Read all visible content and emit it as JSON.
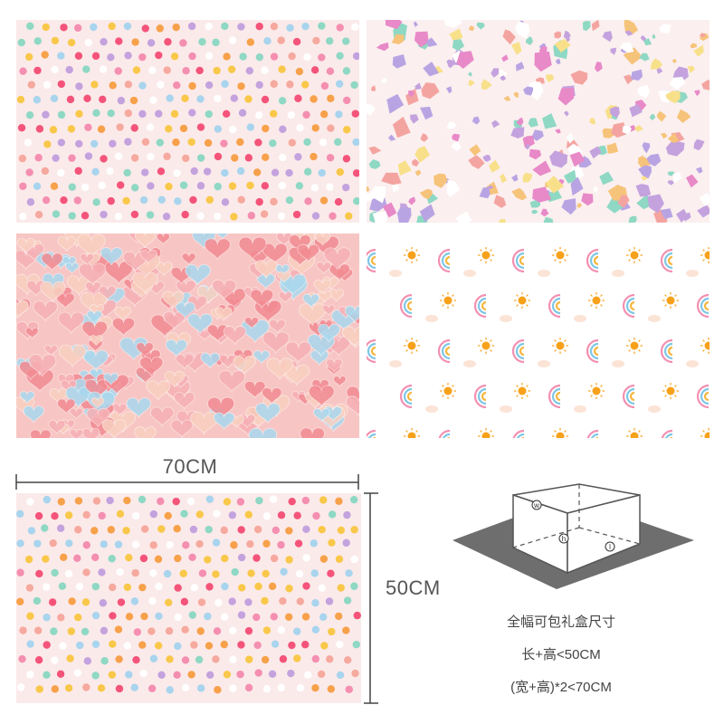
{
  "patterns": [
    {
      "name": "polka-dot"
    },
    {
      "name": "confetti-terrazzo"
    },
    {
      "name": "pastel-hearts"
    },
    {
      "name": "rainbow-and-sun"
    }
  ],
  "preview_pattern": {
    "name": "polka-dot"
  },
  "dimensions": {
    "width_label": "70CM",
    "height_label": "50CM"
  },
  "box_diagram": {
    "labels": [
      "w",
      "h",
      "l"
    ]
  },
  "info": {
    "title": "全幅可包礼盒尺寸",
    "rule1": "长+高<50CM",
    "rule2": "(宽+高)*2<70CM"
  },
  "colors": {
    "dots": [
      "#f4547a",
      "#f7a14b",
      "#f9c84a",
      "#f48fb1",
      "#8ed8c4",
      "#a8d4ee",
      "#c4a2de",
      "#f6a99e",
      "#ffffff"
    ],
    "pink_background": "#fbeaea",
    "heart_colors": [
      "#f28b92",
      "#f6b0b5",
      "#a9d8ee",
      "#f9d0c0"
    ],
    "rainbow_colors": [
      "#f48fb1",
      "#7fc6e6",
      "#f7b63d"
    ],
    "sun": "#f7a11a",
    "dimension_line": "#444444",
    "diagram_shadow": "#6e6e6e"
  }
}
